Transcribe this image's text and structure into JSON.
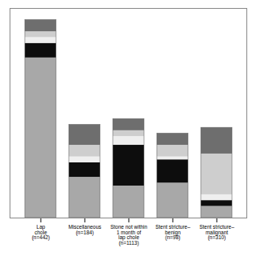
{
  "chart_data": {
    "type": "bar",
    "stacked": true,
    "categories": [
      "Lap\nchole\n(n=442)",
      "Miscellaneous\n(n=184)",
      "Stone not within\n1 month of\nlap chole\n(n=1113)",
      "Stent stricture–\nbenign\n(n=98)",
      "Stent stricture–\nmalignant\n(n=310)"
    ],
    "series": [
      {
        "color": "#a8a8a8",
        "values": [
          55,
          14,
          11,
          12,
          4
        ]
      },
      {
        "color": "#0d0d0d",
        "values": [
          5,
          5,
          14,
          8,
          2
        ]
      },
      {
        "color": "#efefef",
        "values": [
          2,
          2,
          3,
          1,
          2
        ]
      },
      {
        "color": "#cecece",
        "values": [
          2,
          4,
          2,
          4,
          14
        ]
      },
      {
        "color": "#6e6e6e",
        "values": [
          4,
          7,
          4,
          4,
          9
        ]
      }
    ],
    "ylim": [
      0,
      72
    ],
    "tick_labels": "x",
    "grid": false
  }
}
